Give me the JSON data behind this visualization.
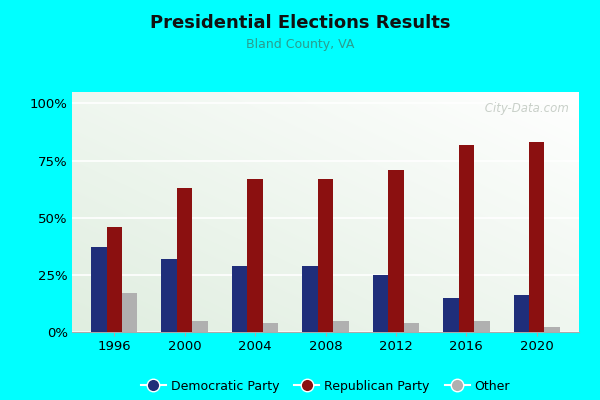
{
  "title": "Presidential Elections Results",
  "subtitle": "Bland County, VA",
  "years": [
    1996,
    2000,
    2004,
    2008,
    2012,
    2016,
    2020
  ],
  "democratic": [
    37,
    32,
    29,
    29,
    25,
    15,
    16
  ],
  "republican": [
    46,
    63,
    67,
    67,
    71,
    82,
    83
  ],
  "other": [
    17,
    5,
    4,
    5,
    4,
    5,
    2
  ],
  "dem_color": "#1f2e7a",
  "rep_color": "#8b1010",
  "other_color": "#b0b0b0",
  "outer_bg": "#00ffff",
  "yticks": [
    0,
    25,
    50,
    75,
    100
  ],
  "ytick_labels": [
    "0%",
    "25%",
    "50%",
    "75%",
    "100%"
  ],
  "ylim": [
    0,
    105
  ],
  "watermark": " City-Data.com",
  "title_color": "#111111",
  "subtitle_color": "#2a9d8f",
  "grid_color": "#d0ddc8"
}
